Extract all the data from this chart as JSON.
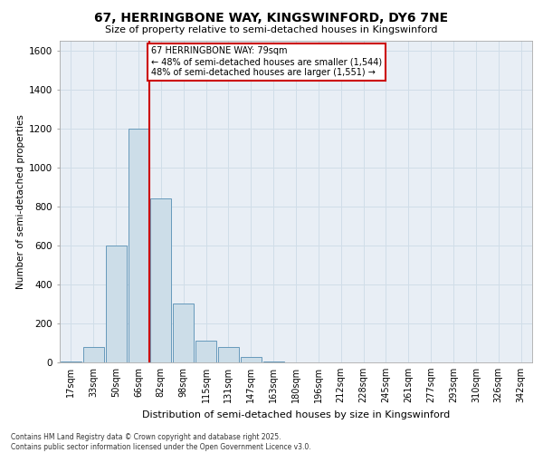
{
  "title_line1": "67, HERRINGBONE WAY, KINGSWINFORD, DY6 7NE",
  "title_line2": "Size of property relative to semi-detached houses in Kingswinford",
  "xlabel": "Distribution of semi-detached houses by size in Kingswinford",
  "ylabel": "Number of semi-detached properties",
  "categories": [
    "17sqm",
    "33sqm",
    "50sqm",
    "66sqm",
    "82sqm",
    "98sqm",
    "115sqm",
    "131sqm",
    "147sqm",
    "163sqm",
    "180sqm",
    "196sqm",
    "212sqm",
    "228sqm",
    "245sqm",
    "261sqm",
    "277sqm",
    "293sqm",
    "310sqm",
    "326sqm",
    "342sqm"
  ],
  "values": [
    5,
    80,
    600,
    1200,
    840,
    300,
    110,
    80,
    30,
    5,
    0,
    0,
    0,
    0,
    0,
    0,
    0,
    0,
    0,
    0,
    0
  ],
  "bar_color": "#ccdde8",
  "bar_edge_color": "#6699bb",
  "vline_x_index": 3.5,
  "annotation_text": "67 HERRINGBONE WAY: 79sqm\n← 48% of semi-detached houses are smaller (1,544)\n48% of semi-detached houses are larger (1,551) →",
  "annotation_box_color": "#ffffff",
  "annotation_box_edge": "#cc0000",
  "vline_color": "#cc0000",
  "grid_color": "#d0dde8",
  "background_color": "#e8eef5",
  "footer_text": "Contains HM Land Registry data © Crown copyright and database right 2025.\nContains public sector information licensed under the Open Government Licence v3.0.",
  "ylim": [
    0,
    1650
  ],
  "yticks": [
    0,
    200,
    400,
    600,
    800,
    1000,
    1200,
    1400,
    1600
  ]
}
